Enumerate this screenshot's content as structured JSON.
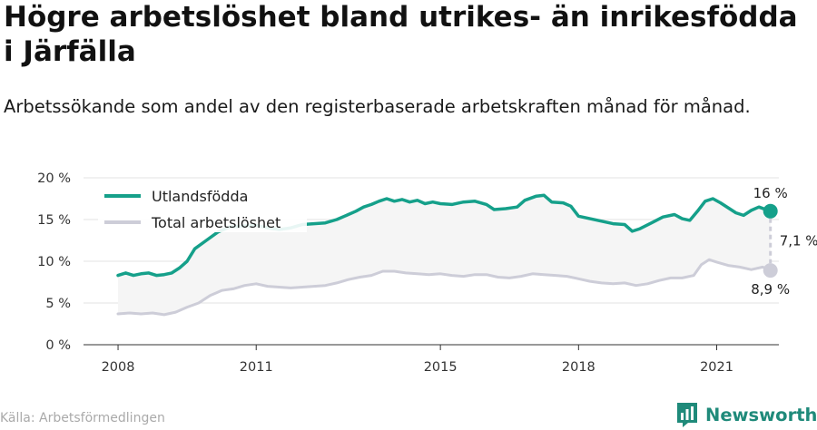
{
  "header": {
    "title": "Högre arbetslöshet bland utrikes- än inrikesfödda i Järfälla",
    "subtitle": "Arbetssökande som andel av den registerbaserade arbetskraften månad för månad."
  },
  "footer": {
    "source": "Källa: Arbetsförmedlingen",
    "brand": "Newsworthy"
  },
  "colors": {
    "foreign_born": "#15a08a",
    "total": "#cdcdd8",
    "gap_fill": "#f5f5f5",
    "grid": "#e3e3e3",
    "brand": "#1f8a7a"
  },
  "chart_data": {
    "type": "line",
    "title": "Högre arbetslöshet bland utrikes- än inrikesfödda i Järfälla",
    "subtitle": "Arbetssökande som andel av den registerbaserade arbetskraften månad för månad.",
    "xlabel": "",
    "ylabel": "",
    "x_range": [
      "2008-01",
      "2022-03"
    ],
    "x_ticks": [
      {
        "date": "2008-01",
        "label": "2008"
      },
      {
        "date": "2011-01",
        "label": "2011"
      },
      {
        "date": "2015-01",
        "label": "2015"
      },
      {
        "date": "2018-01",
        "label": "2018"
      },
      {
        "date": "2021-01",
        "label": "2021"
      }
    ],
    "ylim": [
      0,
      20
    ],
    "y_ticks": [
      {
        "value": 0,
        "label": "0 %"
      },
      {
        "value": 5,
        "label": "5 %"
      },
      {
        "value": 10,
        "label": "10 %"
      },
      {
        "value": 15,
        "label": "15 %"
      },
      {
        "value": 20,
        "label": "20 %"
      }
    ],
    "grid": "horizontal",
    "legend_position": "top-left",
    "series": [
      {
        "name": "Utlandsfödda",
        "color": "#15a08a",
        "points": [
          [
            "2008-01",
            8.3
          ],
          [
            "2008-03",
            8.6
          ],
          [
            "2008-05",
            8.3
          ],
          [
            "2008-07",
            8.5
          ],
          [
            "2008-09",
            8.6
          ],
          [
            "2008-11",
            8.3
          ],
          [
            "2009-01",
            8.4
          ],
          [
            "2009-03",
            8.6
          ],
          [
            "2009-05",
            9.2
          ],
          [
            "2009-07",
            10.0
          ],
          [
            "2009-09",
            11.5
          ],
          [
            "2009-12",
            12.5
          ],
          [
            "2010-03",
            13.5
          ],
          [
            "2010-06",
            14.1
          ],
          [
            "2010-09",
            14.2
          ],
          [
            "2011-01",
            14.3
          ],
          [
            "2011-04",
            14.0
          ],
          [
            "2011-07",
            13.8
          ],
          [
            "2011-10",
            14.0
          ],
          [
            "2012-01",
            14.4
          ],
          [
            "2012-04",
            14.5
          ],
          [
            "2012-07",
            14.6
          ],
          [
            "2012-10",
            15.0
          ],
          [
            "2013-01",
            15.6
          ],
          [
            "2013-03",
            16.0
          ],
          [
            "2013-05",
            16.5
          ],
          [
            "2013-07",
            16.8
          ],
          [
            "2013-09",
            17.2
          ],
          [
            "2013-11",
            17.5
          ],
          [
            "2014-01",
            17.2
          ],
          [
            "2014-03",
            17.4
          ],
          [
            "2014-05",
            17.1
          ],
          [
            "2014-07",
            17.3
          ],
          [
            "2014-09",
            16.9
          ],
          [
            "2014-11",
            17.1
          ],
          [
            "2015-01",
            16.9
          ],
          [
            "2015-04",
            16.8
          ],
          [
            "2015-07",
            17.1
          ],
          [
            "2015-10",
            17.2
          ],
          [
            "2016-01",
            16.8
          ],
          [
            "2016-03",
            16.2
          ],
          [
            "2016-06",
            16.3
          ],
          [
            "2016-09",
            16.5
          ],
          [
            "2016-11",
            17.3
          ],
          [
            "2017-02",
            17.8
          ],
          [
            "2017-04",
            17.9
          ],
          [
            "2017-06",
            17.1
          ],
          [
            "2017-09",
            17.0
          ],
          [
            "2017-11",
            16.6
          ],
          [
            "2018-01",
            15.4
          ],
          [
            "2018-04",
            15.1
          ],
          [
            "2018-07",
            14.8
          ],
          [
            "2018-10",
            14.5
          ],
          [
            "2019-01",
            14.4
          ],
          [
            "2019-03",
            13.6
          ],
          [
            "2019-05",
            13.9
          ],
          [
            "2019-08",
            14.6
          ],
          [
            "2019-11",
            15.3
          ],
          [
            "2020-02",
            15.6
          ],
          [
            "2020-04",
            15.1
          ],
          [
            "2020-06",
            14.9
          ],
          [
            "2020-08",
            16.0
          ],
          [
            "2020-10",
            17.2
          ],
          [
            "2020-12",
            17.5
          ],
          [
            "2021-02",
            17.0
          ],
          [
            "2021-04",
            16.4
          ],
          [
            "2021-06",
            15.8
          ],
          [
            "2021-08",
            15.5
          ],
          [
            "2021-10",
            16.1
          ],
          [
            "2021-12",
            16.5
          ],
          [
            "2022-03",
            16.0
          ]
        ]
      },
      {
        "name": "Total arbetslöshet",
        "color": "#cdcdd8",
        "points": [
          [
            "2008-01",
            3.7
          ],
          [
            "2008-04",
            3.8
          ],
          [
            "2008-07",
            3.7
          ],
          [
            "2008-10",
            3.8
          ],
          [
            "2009-01",
            3.6
          ],
          [
            "2009-04",
            3.9
          ],
          [
            "2009-07",
            4.5
          ],
          [
            "2009-10",
            5.0
          ],
          [
            "2010-01",
            5.9
          ],
          [
            "2010-04",
            6.5
          ],
          [
            "2010-07",
            6.7
          ],
          [
            "2010-10",
            7.1
          ],
          [
            "2011-01",
            7.3
          ],
          [
            "2011-04",
            7.0
          ],
          [
            "2011-07",
            6.9
          ],
          [
            "2011-10",
            6.8
          ],
          [
            "2012-01",
            6.9
          ],
          [
            "2012-04",
            7.0
          ],
          [
            "2012-07",
            7.1
          ],
          [
            "2012-10",
            7.4
          ],
          [
            "2013-01",
            7.8
          ],
          [
            "2013-04",
            8.1
          ],
          [
            "2013-07",
            8.3
          ],
          [
            "2013-10",
            8.8
          ],
          [
            "2014-01",
            8.8
          ],
          [
            "2014-04",
            8.6
          ],
          [
            "2014-07",
            8.5
          ],
          [
            "2014-10",
            8.4
          ],
          [
            "2015-01",
            8.5
          ],
          [
            "2015-04",
            8.3
          ],
          [
            "2015-07",
            8.2
          ],
          [
            "2015-10",
            8.4
          ],
          [
            "2016-01",
            8.4
          ],
          [
            "2016-04",
            8.1
          ],
          [
            "2016-07",
            8.0
          ],
          [
            "2016-10",
            8.2
          ],
          [
            "2017-01",
            8.5
          ],
          [
            "2017-04",
            8.4
          ],
          [
            "2017-07",
            8.3
          ],
          [
            "2017-10",
            8.2
          ],
          [
            "2018-01",
            7.9
          ],
          [
            "2018-04",
            7.6
          ],
          [
            "2018-07",
            7.4
          ],
          [
            "2018-10",
            7.3
          ],
          [
            "2019-01",
            7.4
          ],
          [
            "2019-04",
            7.1
          ],
          [
            "2019-07",
            7.3
          ],
          [
            "2019-10",
            7.7
          ],
          [
            "2020-01",
            8.0
          ],
          [
            "2020-04",
            8.0
          ],
          [
            "2020-07",
            8.3
          ],
          [
            "2020-09",
            9.6
          ],
          [
            "2020-11",
            10.2
          ],
          [
            "2021-01",
            9.9
          ],
          [
            "2021-04",
            9.5
          ],
          [
            "2021-07",
            9.3
          ],
          [
            "2021-10",
            9.0
          ],
          [
            "2022-01",
            9.3
          ],
          [
            "2022-03",
            8.9
          ]
        ]
      }
    ],
    "annotations": [
      {
        "label": "16 %",
        "series": "Utlandsfödda",
        "date": "2022-03",
        "value": 16.0
      },
      {
        "label": "8,9 %",
        "series": "Total arbetslöshet",
        "date": "2022-03",
        "value": 8.9
      },
      {
        "label": "7,1 %",
        "type": "difference",
        "date": "2022-03"
      }
    ]
  }
}
